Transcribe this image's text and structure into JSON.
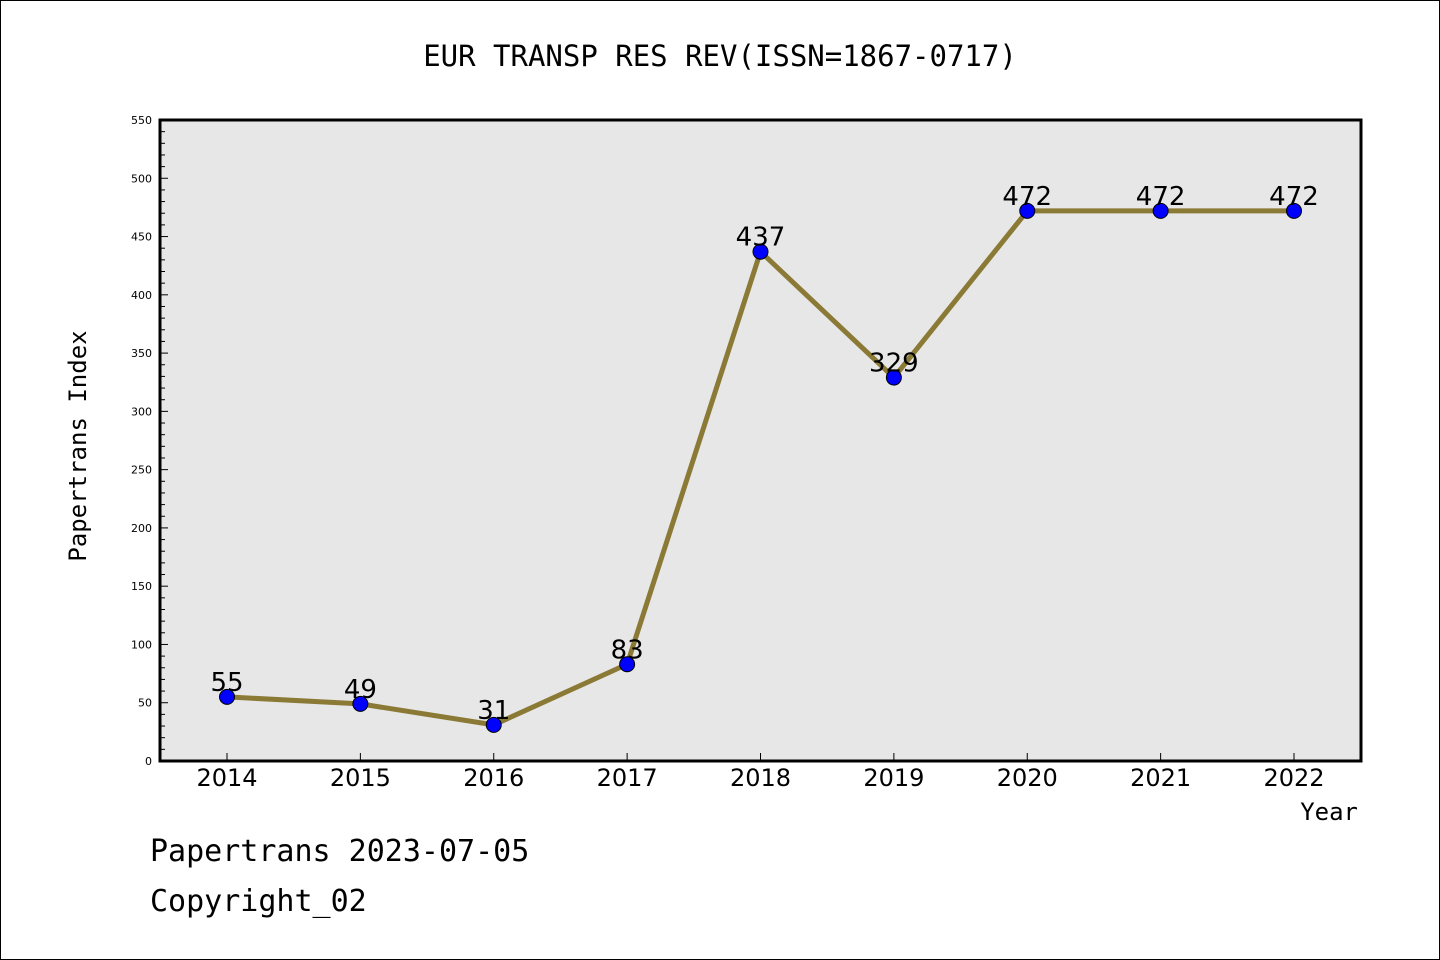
{
  "chart_data": {
    "type": "line",
    "title": "EUR TRANSP RES REV(ISSN=1867-0717)",
    "xlabel": "Year",
    "ylabel": "Papertrans Index",
    "categories": [
      "2014",
      "2015",
      "2016",
      "2017",
      "2018",
      "2019",
      "2020",
      "2021",
      "2022"
    ],
    "series": [
      {
        "values": [
          55,
          49,
          31,
          83,
          437,
          329,
          472,
          472,
          472
        ]
      }
    ],
    "data_labels": [
      "55",
      "49",
      "31",
      "83",
      "437",
      "329",
      "472",
      "472",
      "472"
    ],
    "ylim": [
      0,
      550
    ],
    "yticks": [
      "0",
      "50",
      "100",
      "150",
      "200",
      "250",
      "300",
      "350",
      "400",
      "450",
      "500",
      "550"
    ],
    "grid": false,
    "legend": "none",
    "colors": {
      "line": "#8B7A35",
      "marker": "#0000FF",
      "plot_background": "#E7E7E7"
    }
  },
  "footer": {
    "date_text": "Papertrans 2023-07-05",
    "copyright_text": "Copyright_02"
  }
}
